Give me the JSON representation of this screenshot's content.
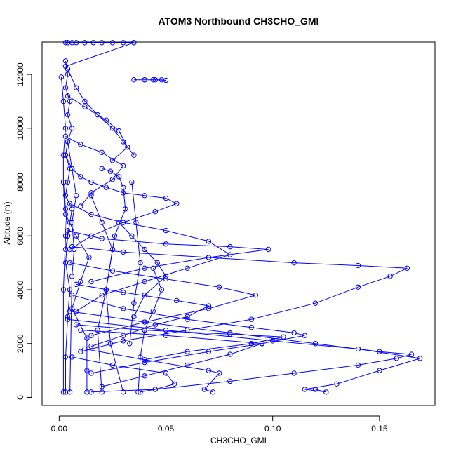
{
  "chart_data": {
    "type": "line",
    "title": "ATOM3 Northbound CH3CHO_GMI",
    "xlabel": "CH3CHO_GMI",
    "ylabel": "Altitude (m)",
    "xlim": [
      -0.008,
      0.176
    ],
    "ylim": [
      -300,
      13200
    ],
    "xticks": [
      0.0,
      0.05,
      0.1,
      0.15
    ],
    "xtick_labels": [
      "0.00",
      "0.05",
      "0.10",
      "0.15"
    ],
    "yticks": [
      0,
      2000,
      4000,
      6000,
      8000,
      10000,
      12000
    ],
    "ytick_labels": [
      "0",
      "2000",
      "4000",
      "6000",
      "8000",
      "10000",
      "12000"
    ],
    "grid": false,
    "legend": "none",
    "color": "#0000ff",
    "marker": "open-circle",
    "series": [
      {
        "x": [
          0.003,
          0.004,
          0.006,
          0.008,
          0.012,
          0.016,
          0.02,
          0.025,
          0.03,
          0.035
        ],
        "y": [
          13180,
          13180,
          13180,
          13180,
          13180,
          13180,
          13180,
          13180,
          13180,
          13180
        ]
      },
      {
        "x": [
          0.035,
          0.003
        ],
        "y": [
          13180,
          12300
        ]
      },
      {
        "x": [
          0.003,
          0.004,
          0.003,
          0.005,
          0.004,
          0.006,
          0.004,
          0.003,
          0.005,
          0.004,
          0.003,
          0.006,
          0.005,
          0.004,
          0.003
        ],
        "y": [
          12500,
          12000,
          11500,
          11000,
          10500,
          10000,
          9500,
          9000,
          8500,
          8000,
          7500,
          7000,
          6500,
          6000,
          5500
        ]
      },
      {
        "x": [
          0.035,
          0.04,
          0.045,
          0.05,
          0.048,
          0.044,
          0.04
        ],
        "y": [
          11800,
          11800,
          11800,
          11780,
          11800,
          11800,
          11800
        ]
      },
      {
        "x": [
          0.004,
          0.008,
          0.012,
          0.018,
          0.025,
          0.03,
          0.035
        ],
        "y": [
          12200,
          11500,
          11000,
          10500,
          10000,
          9500,
          9000
        ]
      },
      {
        "x": [
          0.003,
          0.006,
          0.01,
          0.015,
          0.022,
          0.03,
          0.04,
          0.05,
          0.055,
          0.045,
          0.03,
          0.015,
          0.005
        ],
        "y": [
          9000,
          8500,
          8200,
          8000,
          7800,
          7600,
          7500,
          7400,
          7200,
          6900,
          6500,
          6000,
          5500
        ]
      },
      {
        "x": [
          0.005,
          0.015,
          0.03,
          0.05,
          0.07,
          0.08,
          0.06,
          0.04,
          0.02,
          0.008
        ],
        "y": [
          7200,
          6800,
          6500,
          6200,
          5800,
          5300,
          4800,
          4300,
          3800,
          3200
        ]
      },
      {
        "x": [
          0.004,
          0.02,
          0.05,
          0.08,
          0.098,
          0.07,
          0.04,
          0.015
        ],
        "y": [
          6200,
          5900,
          5700,
          5600,
          5500,
          5200,
          4800,
          4300
        ]
      },
      {
        "x": [
          0.006,
          0.03,
          0.07,
          0.11,
          0.14,
          0.163,
          0.155,
          0.14,
          0.12,
          0.09,
          0.06,
          0.03,
          0.01
        ],
        "y": [
          5600,
          5400,
          5200,
          5000,
          4900,
          4800,
          4500,
          4100,
          3500,
          2900,
          2500,
          2100,
          1700
        ]
      },
      {
        "x": [
          0.005,
          0.025,
          0.05,
          0.075,
          0.092,
          0.07,
          0.04,
          0.015
        ],
        "y": [
          5000,
          4700,
          4400,
          4100,
          3800,
          3300,
          2800,
          2300
        ]
      },
      {
        "x": [
          0.008,
          0.03,
          0.055,
          0.07,
          0.06,
          0.045,
          0.03,
          0.015
        ],
        "y": [
          4200,
          3900,
          3600,
          3400,
          3000,
          2700,
          2300,
          1900
        ]
      },
      {
        "x": [
          0.006,
          0.03,
          0.06,
          0.09,
          0.11,
          0.115,
          0.095,
          0.07,
          0.04,
          0.015
        ],
        "y": [
          3800,
          3300,
          2900,
          2600,
          2400,
          2300,
          2000,
          1700,
          1300,
          900
        ]
      },
      {
        "x": [
          0.005,
          0.04,
          0.08,
          0.12,
          0.15,
          0.165,
          0.158,
          0.14,
          0.11,
          0.08,
          0.045,
          0.015
        ],
        "y": [
          3200,
          2800,
          2400,
          2000,
          1700,
          1600,
          1450,
          1200,
          900,
          600,
          300,
          200
        ]
      },
      {
        "x": [
          0.004,
          0.05,
          0.1,
          0.14,
          0.169,
          0.15,
          0.13,
          0.115,
          0.125,
          0.12
        ],
        "y": [
          2900,
          2500,
          2100,
          1800,
          1450,
          1000,
          500,
          300,
          200,
          300
        ]
      },
      {
        "x": [
          0.008,
          0.04,
          0.08,
          0.105,
          0.09,
          0.06,
          0.04
        ],
        "y": [
          2700,
          2500,
          2350,
          2250,
          2000,
          1700,
          1400
        ]
      },
      {
        "x": [
          0.01,
          0.05,
          0.095,
          0.08,
          0.06,
          0.04,
          0.02
        ],
        "y": [
          2500,
          2300,
          2000,
          1600,
          1200,
          800,
          400
        ]
      },
      {
        "x": [
          0.012,
          0.04,
          0.07,
          0.075,
          0.068,
          0.072
        ],
        "y": [
          1800,
          1400,
          1000,
          900,
          300,
          200
        ]
      },
      {
        "x": [
          0.006,
          0.025,
          0.05,
          0.054,
          0.045,
          0.038
        ],
        "y": [
          1500,
          1200,
          900,
          500,
          300,
          200
        ]
      },
      {
        "x": [
          0.003,
          0.01,
          0.02,
          0.03,
          0.025,
          0.015,
          0.01
        ],
        "y": [
          9700,
          9400,
          9100,
          8600,
          8100,
          7600,
          7100
        ]
      },
      {
        "x": [
          0.004,
          0.012,
          0.022,
          0.028,
          0.032,
          0.025
        ],
        "y": [
          11200,
          10800,
          10300,
          9900,
          9300,
          8800
        ]
      },
      {
        "x": [
          0.003,
          0.008,
          0.014,
          0.01,
          0.006,
          0.013,
          0.013,
          0.013
        ],
        "y": [
          6800,
          6000,
          5200,
          4300,
          3300,
          2200,
          1000,
          200
        ]
      },
      {
        "x": [
          0.002,
          0.003,
          0.004,
          0.003,
          0.005,
          0.004,
          0.003,
          0.003
        ],
        "y": [
          8000,
          7000,
          6000,
          5000,
          4000,
          3000,
          1500,
          200
        ]
      },
      {
        "x": [
          0.004,
          0.006,
          0.008,
          0.006,
          0.007,
          0.006,
          0.005
        ],
        "y": [
          9500,
          8500,
          7500,
          6500,
          5500,
          4500,
          200
        ]
      },
      {
        "x": [
          0.02,
          0.024,
          0.028,
          0.03,
          0.031,
          0.026,
          0.022,
          0.024,
          0.03
        ],
        "y": [
          8500,
          8400,
          8200,
          7800,
          7000,
          6000,
          4000,
          2000,
          200
        ]
      },
      {
        "x": [
          0.015,
          0.02,
          0.025,
          0.022,
          0.018,
          0.02
        ],
        "y": [
          7500,
          6500,
          5500,
          4000,
          2500,
          200
        ]
      },
      {
        "x": [
          0.001,
          0.002,
          0.003,
          0.002,
          0.002,
          0.003,
          0.002,
          0.002
        ],
        "y": [
          11900,
          11000,
          10000,
          9000,
          8000,
          6000,
          4000,
          200
        ]
      },
      {
        "x": [
          0.034,
          0.036,
          0.038,
          0.035,
          0.033
        ],
        "y": [
          8000,
          6500,
          5000,
          3500,
          2000
        ]
      },
      {
        "x": [
          0.044,
          0.048,
          0.044,
          0.04,
          0.038,
          0.037
        ],
        "y": [
          4800,
          4000,
          3200,
          2500,
          1500,
          200
        ]
      },
      {
        "x": [
          0.028,
          0.034,
          0.04,
          0.046,
          0.05,
          0.04,
          0.035
        ],
        "y": [
          6500,
          6000,
          5500,
          5000,
          4500,
          3800,
          3000
        ]
      }
    ]
  }
}
